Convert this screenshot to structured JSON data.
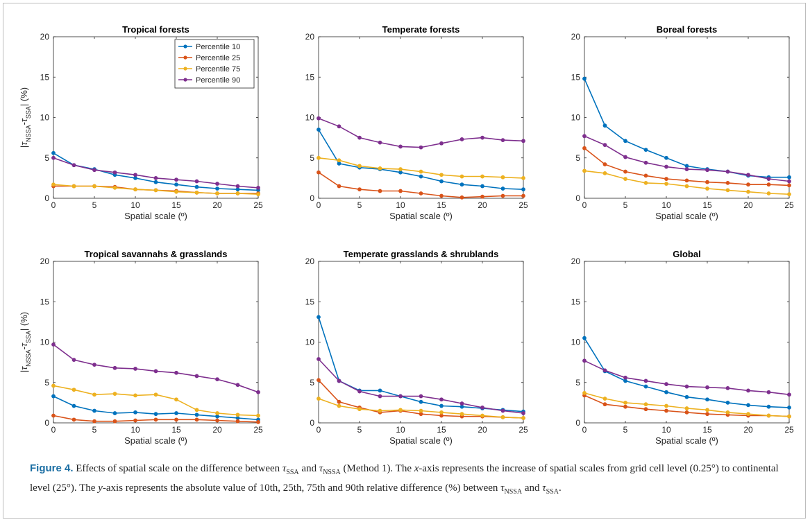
{
  "figure": {
    "caption_label": "Figure 4.",
    "caption_text_1": "Effects of spatial scale on the difference between",
    "caption_text_2": "and",
    "caption_text_3": "(Method 1). The",
    "caption_axis_x": "x",
    "caption_text_4": "-axis represents the increase of spatial scales from grid cell level (0.25°) to continental level (25°). The",
    "caption_axis_y": "y",
    "caption_text_5": "-axis represents the absolute value of 10th, 25th, 75th and 90th relative difference (%) between",
    "caption_text_6": "and",
    "caption_end": ".",
    "tau_symbol": "τ",
    "sub_ssa": "SSA",
    "sub_nssa": "NSSA"
  },
  "colors": {
    "Percentile 10": "#0072BD",
    "Percentile 25": "#D95319",
    "Percentile 75": "#EDB120",
    "Percentile 90": "#7E2F8E"
  },
  "legend": {
    "location": "top-right",
    "entries": [
      "Percentile 10",
      "Percentile 25",
      "Percentile 75",
      "Percentile 90"
    ]
  },
  "chart_data": [
    {
      "type": "line",
      "title": "Tropical forests",
      "xlabel": "Spatial scale (º)",
      "ylabel": "|τNSSA-τSSA| (%)",
      "xlim": [
        0,
        25
      ],
      "ylim": [
        0,
        20
      ],
      "xticks": [
        0,
        5,
        10,
        15,
        20,
        25
      ],
      "yticks": [
        0,
        5,
        10,
        15,
        20
      ],
      "x": [
        0,
        2.5,
        5,
        7.5,
        10,
        12.5,
        15,
        17.5,
        20,
        22.5,
        25
      ],
      "series": [
        {
          "name": "Percentile 10",
          "values": [
            5.6,
            4.1,
            3.6,
            2.9,
            2.5,
            2.0,
            1.7,
            1.4,
            1.2,
            1.1,
            1.0
          ]
        },
        {
          "name": "Percentile 25",
          "values": [
            1.5,
            1.5,
            1.5,
            1.4,
            1.1,
            1.0,
            0.9,
            0.7,
            0.6,
            0.6,
            0.6
          ]
        },
        {
          "name": "Percentile 75",
          "values": [
            1.7,
            1.5,
            1.5,
            1.3,
            1.1,
            1.0,
            0.8,
            0.7,
            0.6,
            0.6,
            0.5
          ]
        },
        {
          "name": "Percentile 90",
          "values": [
            5.0,
            4.1,
            3.5,
            3.2,
            2.9,
            2.5,
            2.3,
            2.1,
            1.8,
            1.5,
            1.3
          ]
        }
      ]
    },
    {
      "type": "line",
      "title": "Temperate forests",
      "xlabel": "Spatial scale (º)",
      "ylabel": "",
      "xlim": [
        0,
        25
      ],
      "ylim": [
        0,
        20
      ],
      "xticks": [
        0,
        5,
        10,
        15,
        20,
        25
      ],
      "yticks": [
        0,
        5,
        10,
        15,
        20
      ],
      "x": [
        0,
        2.5,
        5,
        7.5,
        10,
        12.5,
        15,
        17.5,
        20,
        22.5,
        25
      ],
      "series": [
        {
          "name": "Percentile 10",
          "values": [
            8.5,
            4.3,
            3.8,
            3.6,
            3.2,
            2.7,
            2.1,
            1.7,
            1.5,
            1.2,
            1.1
          ]
        },
        {
          "name": "Percentile 25",
          "values": [
            3.2,
            1.5,
            1.1,
            0.9,
            0.9,
            0.6,
            0.3,
            0.1,
            0.2,
            0.3,
            0.3
          ]
        },
        {
          "name": "Percentile 75",
          "values": [
            5.0,
            4.7,
            4.0,
            3.7,
            3.6,
            3.3,
            2.9,
            2.7,
            2.7,
            2.6,
            2.5
          ]
        },
        {
          "name": "Percentile 90",
          "values": [
            9.9,
            8.9,
            7.5,
            6.9,
            6.4,
            6.3,
            6.8,
            7.3,
            7.5,
            7.2,
            7.1
          ]
        }
      ]
    },
    {
      "type": "line",
      "title": "Boreal forests",
      "xlabel": "Spatial scale (º)",
      "ylabel": "",
      "xlim": [
        0,
        25
      ],
      "ylim": [
        0,
        20
      ],
      "xticks": [
        0,
        5,
        10,
        15,
        20,
        25
      ],
      "yticks": [
        0,
        5,
        10,
        15,
        20
      ],
      "x": [
        0,
        2.5,
        5,
        7.5,
        10,
        12.5,
        15,
        17.5,
        20,
        22.5,
        25
      ],
      "series": [
        {
          "name": "Percentile 10",
          "values": [
            14.8,
            9.0,
            7.1,
            6.0,
            5.0,
            4.0,
            3.6,
            3.3,
            2.8,
            2.6,
            2.6
          ]
        },
        {
          "name": "Percentile 25",
          "values": [
            6.2,
            4.2,
            3.3,
            2.8,
            2.4,
            2.2,
            2.0,
            1.9,
            1.7,
            1.7,
            1.6
          ]
        },
        {
          "name": "Percentile 75",
          "values": [
            3.4,
            3.1,
            2.4,
            1.9,
            1.8,
            1.5,
            1.2,
            1.0,
            0.8,
            0.6,
            0.5
          ]
        },
        {
          "name": "Percentile 90",
          "values": [
            7.7,
            6.6,
            5.1,
            4.4,
            3.9,
            3.6,
            3.5,
            3.3,
            2.9,
            2.4,
            2.1
          ]
        }
      ]
    },
    {
      "type": "line",
      "title": "Tropical savannahs & grasslands",
      "xlabel": "Spatial scale (º)",
      "ylabel": "|τNSSA-τSSA| (%)",
      "xlim": [
        0,
        25
      ],
      "ylim": [
        0,
        20
      ],
      "xticks": [
        0,
        5,
        10,
        15,
        20,
        25
      ],
      "yticks": [
        0,
        5,
        10,
        15,
        20
      ],
      "x": [
        0,
        2.5,
        5,
        7.5,
        10,
        12.5,
        15,
        17.5,
        20,
        22.5,
        25
      ],
      "series": [
        {
          "name": "Percentile 10",
          "values": [
            3.3,
            2.1,
            1.5,
            1.2,
            1.3,
            1.1,
            1.2,
            1.0,
            0.8,
            0.6,
            0.4
          ]
        },
        {
          "name": "Percentile 25",
          "values": [
            0.9,
            0.4,
            0.2,
            0.2,
            0.3,
            0.4,
            0.4,
            0.4,
            0.3,
            0.2,
            0.1
          ]
        },
        {
          "name": "Percentile 75",
          "values": [
            4.6,
            4.1,
            3.5,
            3.6,
            3.4,
            3.5,
            2.9,
            1.6,
            1.2,
            1.0,
            0.9
          ]
        },
        {
          "name": "Percentile 90",
          "values": [
            9.7,
            7.8,
            7.2,
            6.8,
            6.7,
            6.4,
            6.2,
            5.8,
            5.4,
            4.7,
            3.8
          ]
        }
      ]
    },
    {
      "type": "line",
      "title": "Temperate grasslands & shrublands",
      "xlabel": "Spatial scale (º)",
      "ylabel": "",
      "xlim": [
        0,
        25
      ],
      "ylim": [
        0,
        20
      ],
      "xticks": [
        0,
        5,
        10,
        15,
        20,
        25
      ],
      "yticks": [
        0,
        5,
        10,
        15,
        20
      ],
      "x": [
        0,
        2.5,
        5,
        7.5,
        10,
        12.5,
        15,
        17.5,
        20,
        22.5,
        25
      ],
      "series": [
        {
          "name": "Percentile 10",
          "values": [
            13.1,
            5.2,
            4.0,
            4.0,
            3.3,
            2.6,
            2.1,
            2.0,
            1.8,
            1.6,
            1.4
          ]
        },
        {
          "name": "Percentile 25",
          "values": [
            5.3,
            2.6,
            1.9,
            1.3,
            1.5,
            1.1,
            0.9,
            0.8,
            0.8,
            0.7,
            0.6
          ]
        },
        {
          "name": "Percentile 75",
          "values": [
            3.0,
            2.1,
            1.7,
            1.5,
            1.6,
            1.5,
            1.3,
            1.1,
            0.9,
            0.7,
            0.6
          ]
        },
        {
          "name": "Percentile 90",
          "values": [
            7.9,
            5.2,
            3.9,
            3.3,
            3.3,
            3.3,
            2.9,
            2.4,
            1.9,
            1.5,
            1.2
          ]
        }
      ]
    },
    {
      "type": "line",
      "title": "Global",
      "xlabel": "Spatial scale (º)",
      "ylabel": "",
      "xlim": [
        0,
        25
      ],
      "ylim": [
        0,
        20
      ],
      "xticks": [
        0,
        5,
        10,
        15,
        20,
        25
      ],
      "yticks": [
        0,
        5,
        10,
        15,
        20
      ],
      "x": [
        0,
        2.5,
        5,
        7.5,
        10,
        12.5,
        15,
        17.5,
        20,
        22.5,
        25
      ],
      "series": [
        {
          "name": "Percentile 10",
          "values": [
            10.5,
            6.4,
            5.2,
            4.5,
            3.8,
            3.2,
            2.9,
            2.5,
            2.2,
            2.0,
            1.9
          ]
        },
        {
          "name": "Percentile 25",
          "values": [
            3.4,
            2.3,
            2.0,
            1.7,
            1.5,
            1.3,
            1.1,
            1.0,
            0.9,
            0.9,
            0.8
          ]
        },
        {
          "name": "Percentile 75",
          "values": [
            3.7,
            3.0,
            2.5,
            2.3,
            2.1,
            1.8,
            1.6,
            1.3,
            1.1,
            0.9,
            0.8
          ]
        },
        {
          "name": "Percentile 90",
          "values": [
            7.7,
            6.5,
            5.6,
            5.2,
            4.8,
            4.5,
            4.4,
            4.3,
            4.0,
            3.8,
            3.5
          ]
        }
      ]
    }
  ]
}
